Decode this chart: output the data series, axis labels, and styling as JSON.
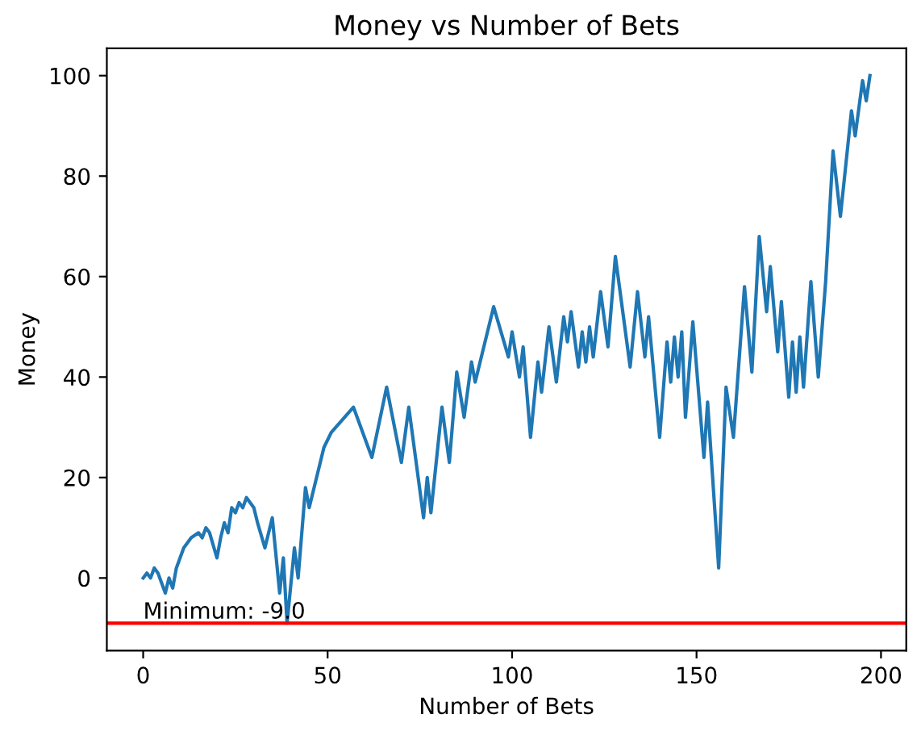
{
  "chart_data": {
    "type": "line",
    "title": "Money vs Number of Bets",
    "xlabel": "Number of Bets",
    "ylabel": "Money",
    "xlim": [
      -9.85,
      206.85
    ],
    "ylim": [
      -14.45,
      105.45
    ],
    "xticks": [
      0,
      50,
      100,
      150,
      200
    ],
    "yticks": [
      0,
      20,
      40,
      60,
      80,
      100
    ],
    "grid": false,
    "legend": false,
    "series": [
      {
        "color": "#1f77b4",
        "x": [
          0,
          1,
          2,
          3,
          4,
          6,
          7,
          8,
          9,
          11,
          13,
          15,
          16,
          17,
          18,
          20,
          21,
          22,
          23,
          24,
          25,
          26,
          27,
          28,
          30,
          31,
          33,
          35,
          37,
          38,
          39,
          41,
          42,
          44,
          45,
          49,
          51,
          57,
          62,
          66,
          70,
          72,
          76,
          77,
          78,
          81,
          83,
          85,
          87,
          89,
          90,
          95,
          99,
          100,
          102,
          103,
          105,
          107,
          108,
          110,
          112,
          114,
          115,
          116,
          118,
          119,
          120,
          121,
          122,
          124,
          126,
          128,
          132,
          134,
          136,
          137,
          140,
          142,
          143,
          144,
          145,
          146,
          147,
          149,
          152,
          153,
          156,
          158,
          160,
          163,
          165,
          167,
          169,
          170,
          172,
          173,
          175,
          176,
          177,
          178,
          179,
          181,
          183,
          185,
          187,
          189,
          192,
          193,
          195,
          196,
          197
        ],
        "values": [
          0,
          1,
          0,
          2,
          1,
          -3,
          0,
          -2,
          2,
          6,
          8,
          9,
          8,
          10,
          9,
          4,
          8,
          11,
          9,
          14,
          13,
          15,
          14,
          16,
          14,
          11,
          6,
          12,
          -3,
          4,
          -9,
          6,
          0,
          18,
          14,
          26,
          29,
          34,
          24,
          38,
          23,
          34,
          12,
          20,
          13,
          34,
          23,
          41,
          32,
          43,
          39,
          54,
          44,
          49,
          40,
          46,
          28,
          43,
          37,
          50,
          39,
          52,
          47,
          53,
          42,
          49,
          43,
          50,
          44,
          57,
          46,
          64,
          42,
          57,
          44,
          52,
          28,
          47,
          39,
          48,
          40,
          49,
          32,
          51,
          24,
          35,
          2,
          38,
          28,
          58,
          41,
          68,
          53,
          62,
          45,
          55,
          36,
          47,
          37,
          48,
          38,
          59,
          40,
          59,
          85,
          72,
          93,
          88,
          99,
          95,
          100
        ]
      }
    ],
    "line_style": "solid",
    "marker": "none",
    "ref_lines": [
      {
        "axis": "y",
        "value": -9,
        "color": "#ff0000",
        "line_style": "solid"
      }
    ],
    "annotations": [
      {
        "text": "Minimum: -9.0",
        "x": 0,
        "y": -9
      }
    ]
  }
}
